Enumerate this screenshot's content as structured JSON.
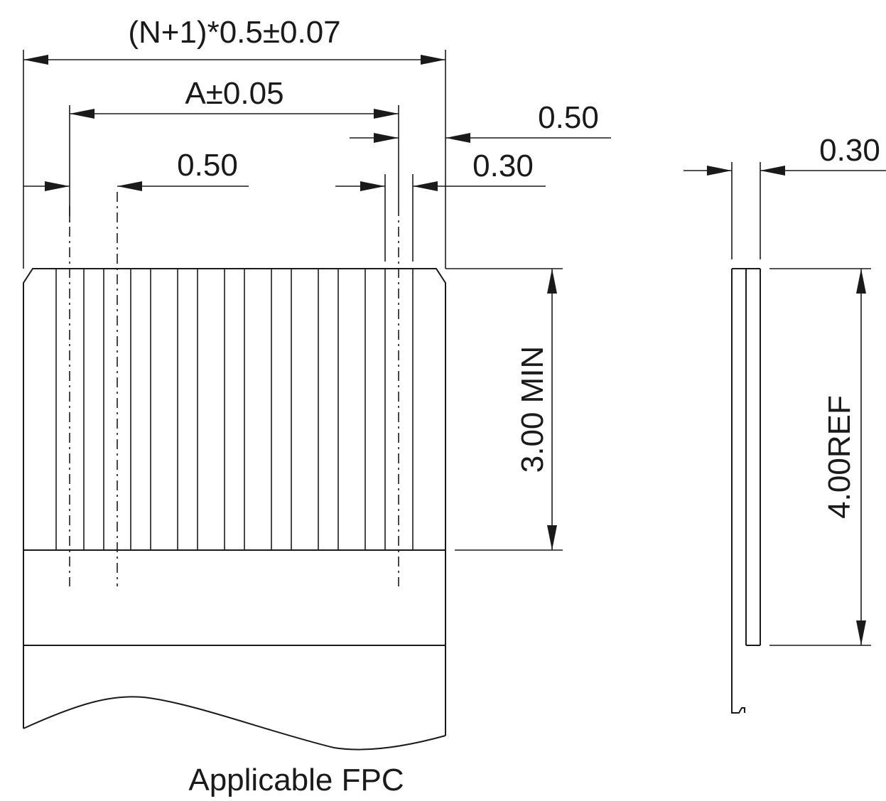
{
  "drawing": {
    "dims": {
      "overall_width": "(N+1)*0.5±0.07",
      "pitch_span": "A±0.05",
      "pitch_left": "0.50",
      "pitch_right": "0.50",
      "contact_width": "0.30",
      "fpc_thickness": "0.30",
      "contact_length": "3.00 MIN",
      "stiffener_length": "4.00REF"
    },
    "caption": "Applicable FPC"
  }
}
